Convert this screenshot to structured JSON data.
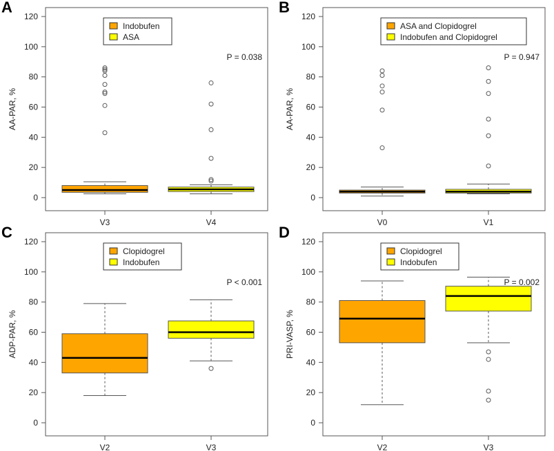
{
  "colors": {
    "orange": "#FFA500",
    "yellow": "#FFFF00",
    "box_border": "#595959",
    "outlier": "#595959"
  },
  "chart_data": [
    {
      "panel_label": "A",
      "type": "boxplot",
      "ylabel": "AA-PAR, %",
      "ylim": [
        0,
        120
      ],
      "yticks": [
        0,
        20,
        40,
        60,
        80,
        100,
        120
      ],
      "p_value": "P = 0.038",
      "legend_placement": "top-center",
      "legend": [
        {
          "label": "Indobufen",
          "color": "#FFA500"
        },
        {
          "label": "ASA",
          "color": "#FFFF00"
        }
      ],
      "boxes": [
        {
          "category": "V3",
          "color": "#FFA500",
          "whisker_low": 2.5,
          "q1": 3.5,
          "median": 5,
          "q3": 8,
          "whisker_high": 10.5,
          "outliers": [
            43,
            61,
            69,
            70,
            75,
            81,
            84,
            85,
            86
          ]
        },
        {
          "category": "V4",
          "color": "#FFFF00",
          "whisker_low": 2.5,
          "q1": 4,
          "median": 5.5,
          "q3": 7,
          "whisker_high": 8.5,
          "outliers": [
            11,
            12,
            26,
            45,
            62,
            76
          ]
        }
      ]
    },
    {
      "panel_label": "B",
      "type": "boxplot",
      "ylabel": "AA-PAR, %",
      "ylim": [
        0,
        120
      ],
      "yticks": [
        0,
        20,
        40,
        60,
        80,
        100,
        120
      ],
      "p_value": "P = 0.947",
      "legend_placement": "top-center",
      "legend": [
        {
          "label": "ASA and Clopidogrel",
          "color": "#FFA500"
        },
        {
          "label": "Indobufen and Clopidogrel",
          "color": "#FFFF00"
        }
      ],
      "boxes": [
        {
          "category": "V0",
          "color": "#FFA500",
          "whisker_low": 1,
          "q1": 3,
          "median": 4,
          "q3": 5,
          "whisker_high": 7,
          "outliers": [
            33,
            58,
            70,
            74,
            81,
            84
          ]
        },
        {
          "category": "V1",
          "color": "#FFFF00",
          "whisker_low": 2.5,
          "q1": 3,
          "median": 4,
          "q3": 5.5,
          "whisker_high": 9,
          "outliers": [
            21,
            41,
            52,
            69,
            77,
            86
          ]
        }
      ]
    },
    {
      "panel_label": "C",
      "type": "boxplot",
      "ylabel": "ADP-PAR, %",
      "ylim": [
        0,
        120
      ],
      "yticks": [
        0,
        20,
        40,
        60,
        80,
        100,
        120
      ],
      "p_value": "P < 0.001",
      "legend_placement": "top-center",
      "legend": [
        {
          "label": "Clopidogrel",
          "color": "#FFA500"
        },
        {
          "label": "Indobufen",
          "color": "#FFFF00"
        }
      ],
      "boxes": [
        {
          "category": "V2",
          "color": "#FFA500",
          "whisker_low": 18,
          "q1": 33,
          "median": 43,
          "q3": 59,
          "whisker_high": 79,
          "outliers": []
        },
        {
          "category": "V3",
          "color": "#FFFF00",
          "whisker_low": 41,
          "q1": 56,
          "median": 60,
          "q3": 67.5,
          "whisker_high": 81.5,
          "outliers": [
            36
          ]
        }
      ]
    },
    {
      "panel_label": "D",
      "type": "boxplot",
      "ylabel": "PRI-VASP, %",
      "ylim": [
        0,
        120
      ],
      "yticks": [
        0,
        20,
        40,
        60,
        80,
        100,
        120
      ],
      "p_value": "P = 0.002",
      "legend_placement": "top-center",
      "legend": [
        {
          "label": "Clopidogrel",
          "color": "#FFA500"
        },
        {
          "label": "Indobufen",
          "color": "#FFFF00"
        }
      ],
      "boxes": [
        {
          "category": "V2",
          "color": "#FFA500",
          "whisker_low": 12,
          "q1": 53,
          "median": 69,
          "q3": 81,
          "whisker_high": 94,
          "outliers": []
        },
        {
          "category": "V3",
          "color": "#FFFF00",
          "whisker_low": 53,
          "q1": 74,
          "median": 84,
          "q3": 90.5,
          "whisker_high": 96.5,
          "outliers": [
            15,
            21,
            42,
            47
          ]
        }
      ]
    }
  ]
}
